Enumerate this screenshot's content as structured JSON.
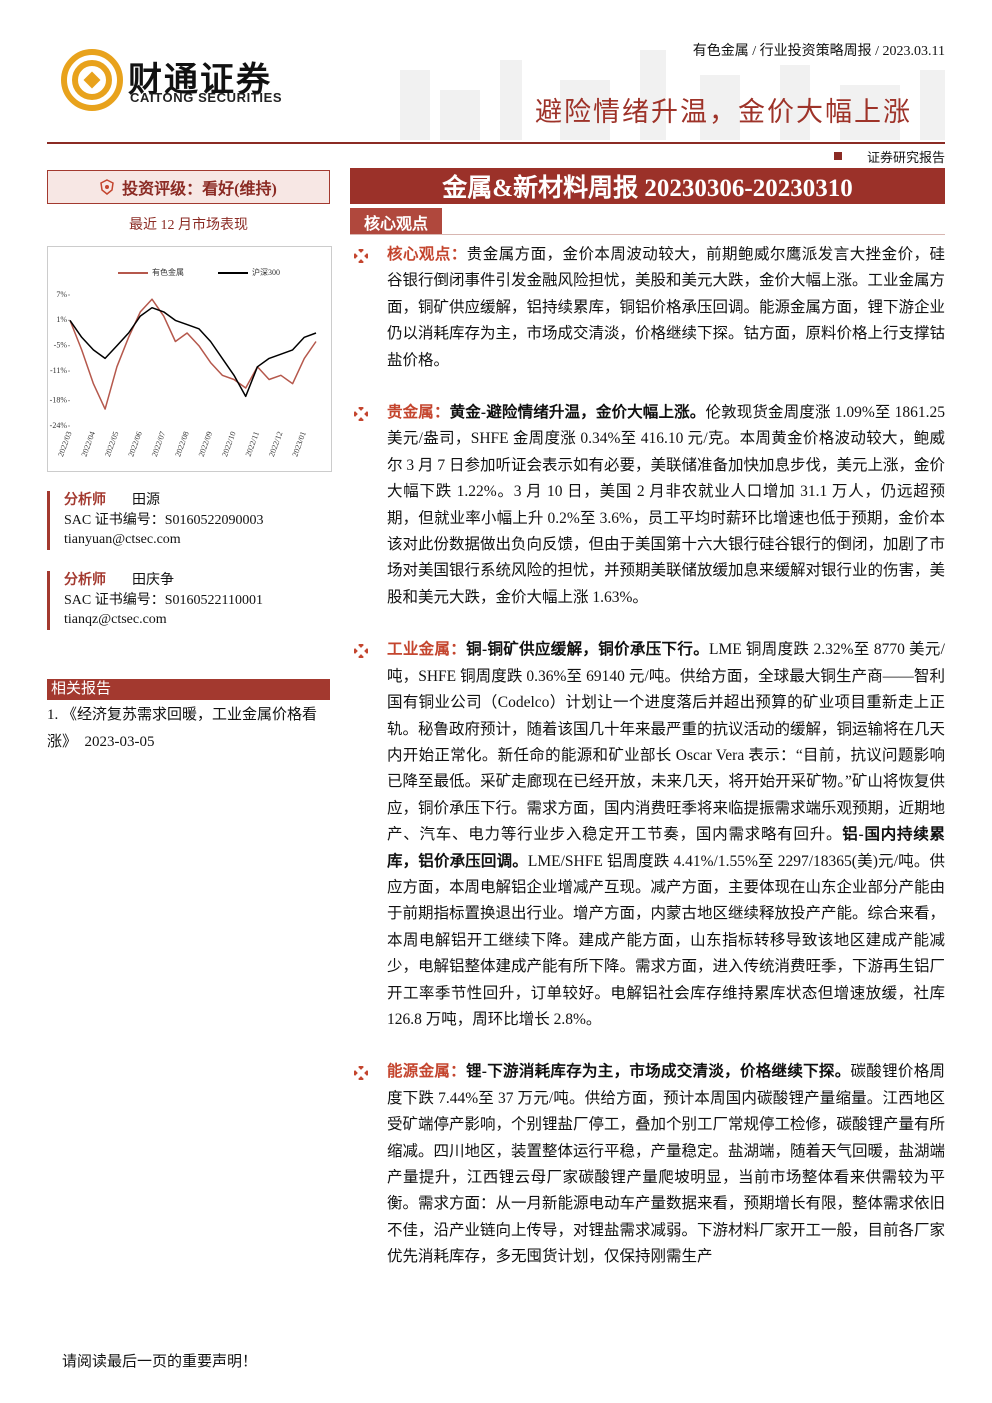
{
  "header": {
    "brand": "财通证券",
    "brand_en": "CAITONG SECURITIES",
    "breadcrumb": "有色金属 / 行业投资策略周报 / 2023.03.11",
    "headline": "避险情绪升温，金价大幅上涨",
    "report_type": "证券研究报告"
  },
  "sidebar": {
    "rating": "投资评级：看好(维持)",
    "chart_caption": "最近 12 月市场表现",
    "analysts": [
      {
        "label": "分析师",
        "name": "田源",
        "sac": "SAC 证书编号：S0160522090003",
        "email": "tianyuan@ctsec.com"
      },
      {
        "label": "分析师",
        "name": "田庆争",
        "sac": "SAC 证书编号：S0160522110001",
        "email": "tianqz@ctsec.com"
      }
    ],
    "related_title": "相关报告",
    "related": [
      "1. 《经济复苏需求回暖，工业金属价格看涨》　2023-03-05"
    ]
  },
  "chart_data": {
    "type": "line",
    "categories": [
      "2022/03",
      null,
      "2022/04",
      null,
      "2022/05",
      null,
      "2022/06",
      null,
      "2022/07",
      null,
      "2022/08",
      null,
      "2022/09",
      null,
      "2022/10",
      null,
      "2022/11",
      null,
      "2022/12",
      null,
      "2023/01",
      null
    ],
    "series": [
      {
        "name": "有色金属",
        "color": "#b5584c",
        "values": [
          1,
          -6,
          -14,
          -20,
          -10,
          -3,
          3,
          6,
          2,
          -4,
          -2,
          -5,
          -9,
          -12,
          -13,
          -15,
          -10,
          -13,
          -12,
          -14,
          -8,
          -4
        ]
      },
      {
        "name": "沪深300",
        "color": "#000000",
        "values": [
          1,
          -3,
          -6,
          -8,
          -5,
          -2,
          2,
          4,
          3,
          1,
          0,
          -1,
          -4,
          -8,
          -12,
          -17,
          -10,
          -8,
          -7,
          -6,
          -3,
          -2
        ]
      }
    ],
    "ylim": [
      -24,
      7
    ],
    "yticks": [
      {
        "value": 7,
        "label": "7%"
      },
      {
        "value": 1,
        "label": "1%"
      },
      {
        "value": -5,
        "label": "-5%"
      },
      {
        "value": -11,
        "label": "-11%"
      },
      {
        "value": -18,
        "label": "-18%"
      },
      {
        "value": -24,
        "label": "-24%"
      }
    ],
    "legend": "top"
  },
  "content": {
    "title": "金属&新材料周报 20230306-20230310",
    "section": "核心观点",
    "paragraphs": [
      {
        "label": "核心观点：",
        "parts": [
          {
            "text": "贵金属方面，金价本周波动较大，前期鲍威尔鹰派发言大挫金价，硅谷银行倒闭事件引发金融风险担忧，美股和美元大跌，金价大幅上涨。工业金属方面，铜矿供应缓解，铝持续累库，铜铝价格承压回调。能源金属方面，锂下游企业仍以消耗库存为主，市场成交清淡，价格继续下探。钴方面，原料价格上行支撑钴盐价格。",
            "bold": false
          }
        ]
      },
      {
        "label": "贵金属：",
        "parts": [
          {
            "text": "黄金-避险情绪升温，金价大幅上涨。",
            "bold": true
          },
          {
            "text": "伦敦现货金周度涨 1.09%至 1861.25 美元/盎司，SHFE 金周度涨 0.34%至 416.10 元/克。本周黄金价格波动较大，鲍威尔 3 月 7 日参加听证会表示如有必要，美联储准备加快加息步伐，美元上涨，金价大幅下跌 1.22%。3 月 10 日，美国 2 月非农就业人口增加 31.1 万人，仍远超预期，但就业率小幅上升 0.2%至 3.6%，员工平均时薪环比增速也低于预期，金价本该对此份数据做出负向反馈，但由于美国第十六大银行硅谷银行的倒闭，加剧了市场对美国银行系统风险的担忧，并预期美联储放缓加息来缓解对银行业的伤害，美股和美元大跌，金价大幅上涨 1.63%。",
            "bold": false
          }
        ]
      },
      {
        "label": "工业金属：",
        "parts": [
          {
            "text": "铜-铜矿供应缓解，铜价承压下行。",
            "bold": true
          },
          {
            "text": "LME 铜周度跌 2.32%至 8770 美元/吨，SHFE 铜周度跌 0.36%至 69140 元/吨。供给方面，全球最大铜生产商——智利国有铜业公司（Codelco）计划让一个进度落后并超出预算的矿业项目重新走上正轨。秘鲁政府预计，随着该国几十年来最严重的抗议活动的缓解，铜运输将在几天内开始正常化。新任命的能源和矿业部长 Oscar Vera 表示：“目前，抗议问题影响已降至最低。采矿走廊现在已经开放，未来几天，将开始开采矿物。”矿山将恢复供应，铜价承压下行。需求方面，国内消费旺季将来临提振需求端乐观预期，近期地产、汽车、电力等行业步入稳定开工节奏，国内需求略有回升。",
            "bold": false
          },
          {
            "text": "铝-国内持续累库，铝价承压回调。",
            "bold": true
          },
          {
            "text": "LME/SHFE 铝周度跌 4.41%/1.55%至 2297/18365(美)元/吨。供应方面，本周电解铝企业增减产互现。减产方面，主要体现在山东企业部分产能由于前期指标置换退出行业。增产方面，内蒙古地区继续释放投产产能。综合来看，本周电解铝开工继续下降。建成产能方面，山东指标转移导致该地区建成产能减少，电解铝整体建成产能有所下降。需求方面，进入传统消费旺季，下游再生铝厂开工率季节性回升，订单较好。电解铝社会库存维持累库状态但增速放缓，社库 126.8 万吨，周环比增长 2.8%。",
            "bold": false
          }
        ]
      },
      {
        "label": "能源金属：",
        "parts": [
          {
            "text": "锂-下游消耗库存为主，市场成交清淡，价格继续下探。",
            "bold": true
          },
          {
            "text": "碳酸锂价格周度下跌 7.44%至 37 万元/吨。供给方面，预计本周国内碳酸锂产量缩量。江西地区受矿端停产影响，个别锂盐厂停工，叠加个别工厂常规停工检修，碳酸锂产量有所缩减。四川地区，装置整体运行平稳，产量稳定。盐湖端，随着天气回暖，盐湖端产量提升，江西锂云母厂家碳酸锂产量爬坡明显，当前市场整体看来供需较为平衡。需求方面：从一月新能源电动车产量数据来看，预期增长有限，整体需求依旧不佳，沿产业链向上传导，对锂盐需求减弱。下游材料厂家开工一般，目前各厂家优先消耗库存，多无囤货计划，仅保持刚需生产",
            "bold": false
          }
        ]
      }
    ]
  },
  "footer": "请阅读最后一页的重要声明！"
}
